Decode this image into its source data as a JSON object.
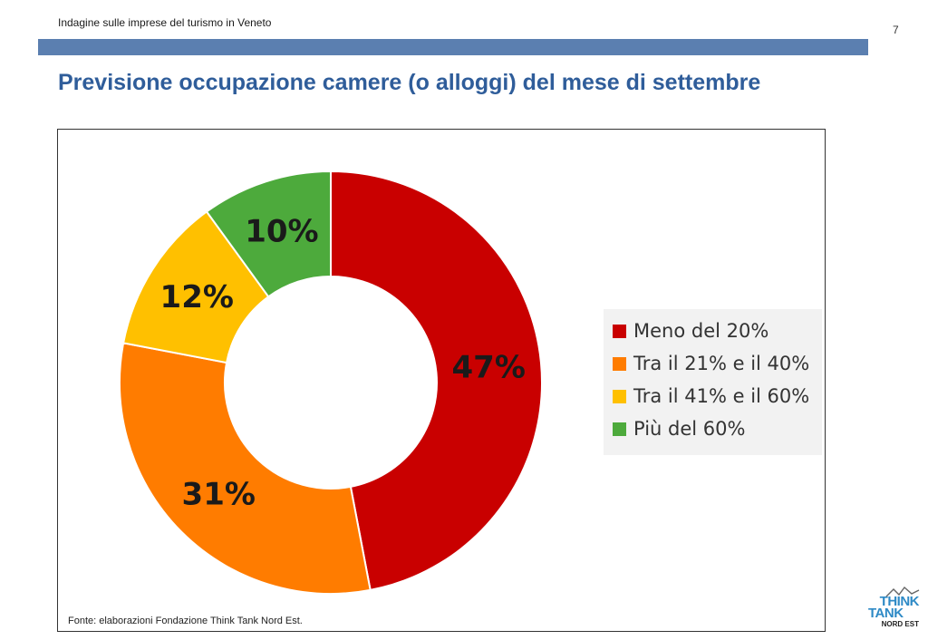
{
  "header": {
    "subtitle": "Indagine sulle imprese del turismo in Veneto",
    "page_number": "7"
  },
  "title": "Previsione occupazione camere (o alloggi) del mese di settembre",
  "source": "Fonte: elaborazioni Fondazione Think Tank Nord Est.",
  "logo": {
    "think": "THINK",
    "tank": "TANK",
    "nord_est": "NORD EST"
  },
  "colors": {
    "header_bar": "#5b7fb0",
    "title": "#2f5d9a"
  },
  "chart_data": {
    "type": "pie",
    "donut": true,
    "title": "",
    "categories": [
      "Meno del 20%",
      "Tra il 21% e il 40%",
      "Tra il 41% e il 60%",
      "Più del 60%"
    ],
    "values": [
      47,
      31,
      12,
      10
    ],
    "labels": [
      "47%",
      "31%",
      "12%",
      "10%"
    ],
    "colors": [
      "#c90000",
      "#ff7c00",
      "#ffc000",
      "#4daa3c"
    ],
    "legend_position": "right"
  }
}
